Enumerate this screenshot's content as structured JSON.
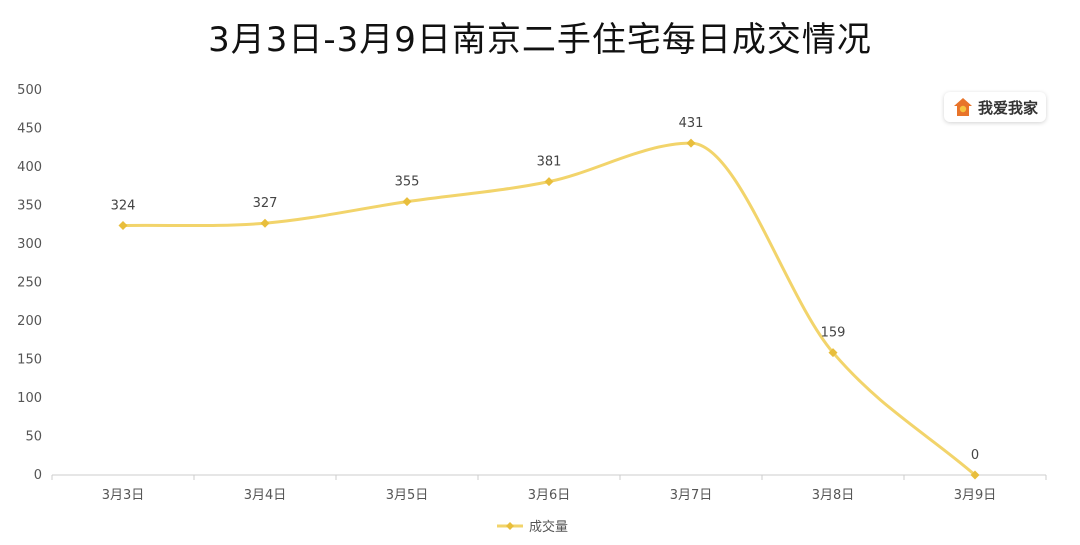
{
  "chart_data": {
    "type": "line",
    "title": "3月3日-3月9日南京二手住宅每日成交情况",
    "categories": [
      "3月3日",
      "3月4日",
      "3月5日",
      "3月6日",
      "3月7日",
      "3月8日",
      "3月9日"
    ],
    "series": [
      {
        "name": "成交量",
        "values": [
          324,
          327,
          355,
          381,
          431,
          159,
          0
        ]
      }
    ],
    "ylim": [
      0,
      500
    ],
    "yticks": [
      0,
      50,
      100,
      150,
      200,
      250,
      300,
      350,
      400,
      450,
      500
    ],
    "grid": false,
    "smooth": true,
    "legend": "bottom-center",
    "color": "#F2D46B",
    "point_color": "#E8BE3C"
  },
  "brand": {
    "label": "我爱我家",
    "icon": "house-logo-icon",
    "icon_color": "#E8742A"
  }
}
